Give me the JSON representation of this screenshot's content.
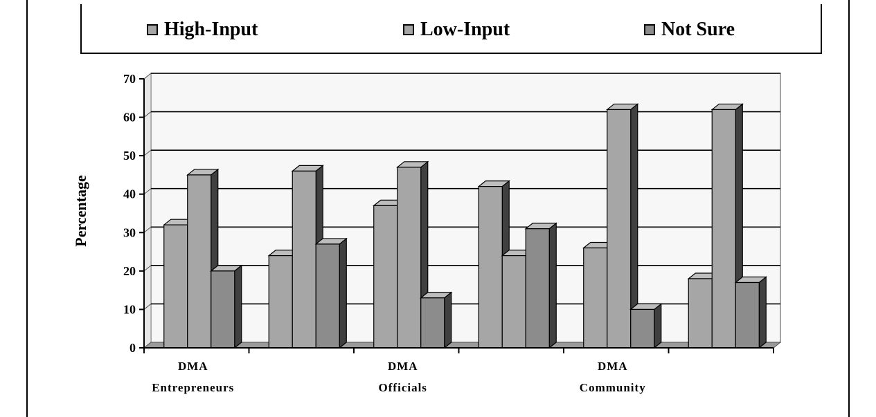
{
  "colors": {
    "high_input": "#a6a6a6",
    "low_input": "#a6a6a6",
    "not_sure": "#8c8c8c",
    "edge": "#000000",
    "side_shade": "#404040",
    "plot_bg": "#f7f7f7",
    "grid": "#000000"
  },
  "chart_data": {
    "type": "bar",
    "style": "3d-clustered",
    "ylabel": "Percentage",
    "ylim": [
      0,
      70
    ],
    "yticks": [
      0,
      10,
      20,
      30,
      40,
      50,
      60,
      70
    ],
    "grid": true,
    "legend_placement": "top",
    "categories": [
      {
        "line1": "DMA",
        "line2": "Entrepreneurs"
      },
      {
        "line1": "",
        "line2": ""
      },
      {
        "line1": "DMA",
        "line2": "Officials"
      },
      {
        "line1": "",
        "line2": ""
      },
      {
        "line1": "DMA",
        "line2": "Community"
      },
      {
        "line1": "",
        "line2": ""
      }
    ],
    "series": [
      {
        "name": "High-Input",
        "values": [
          32,
          24,
          37,
          42,
          26,
          18
        ]
      },
      {
        "name": "Low-Input",
        "values": [
          45,
          46,
          47,
          24,
          62,
          62
        ]
      },
      {
        "name": "Not Sure",
        "values": [
          20,
          27,
          13,
          31,
          10,
          17
        ]
      }
    ]
  }
}
